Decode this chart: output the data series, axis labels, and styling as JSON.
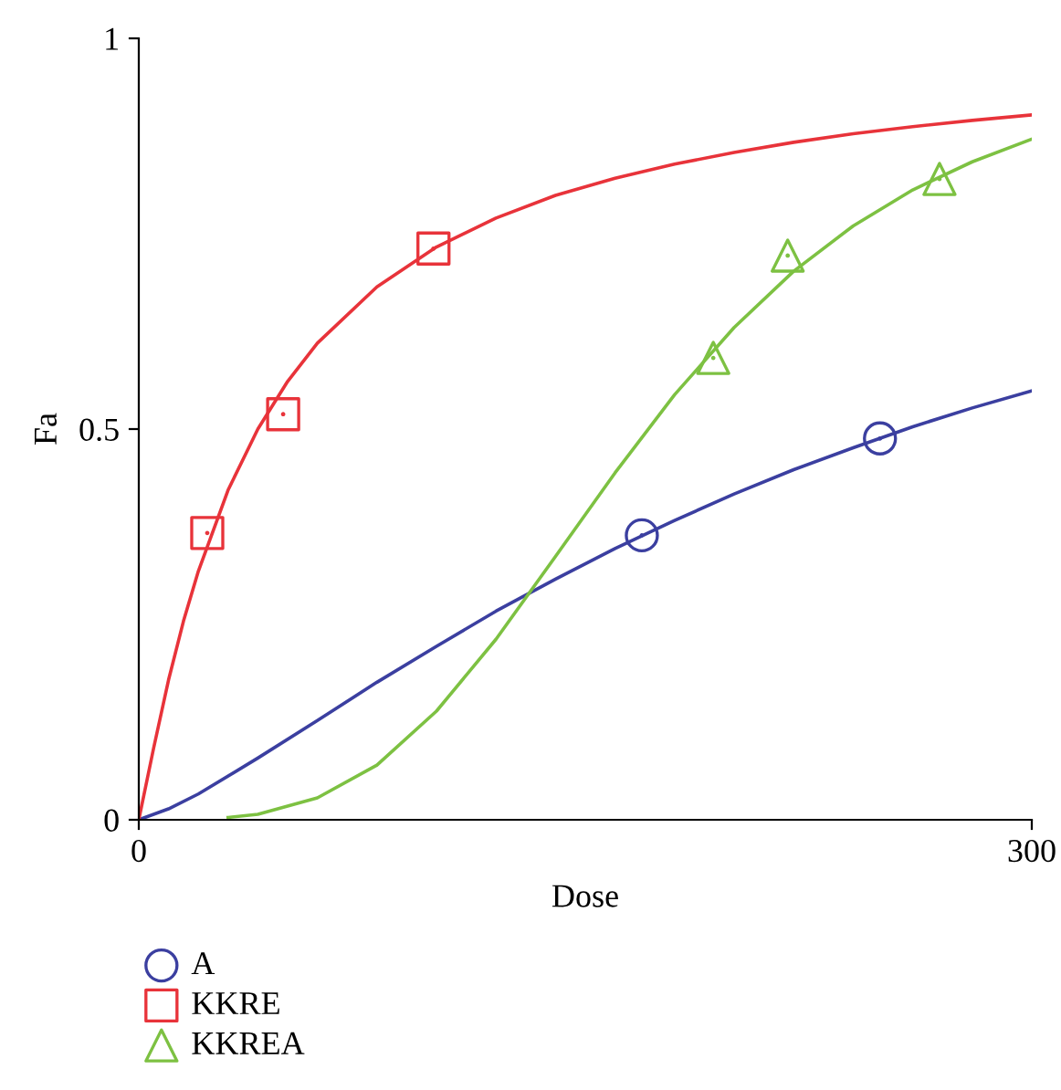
{
  "chart_data": {
    "type": "line",
    "xlabel": "Dose",
    "ylabel": "Fa",
    "xlim": [
      0,
      300
    ],
    "ylim": [
      0,
      1
    ],
    "xticks": [
      0,
      300
    ],
    "yticks": [
      0,
      0.5,
      1
    ],
    "grid": false,
    "legend": "bottom left",
    "series": [
      {
        "color": "#3b3fa0",
        "x": [
          0,
          10,
          20,
          40,
          60,
          80,
          100,
          120,
          140,
          160,
          180,
          200,
          220,
          240,
          260,
          280,
          300
        ],
        "values": [
          0,
          0.014,
          0.033,
          0.079,
          0.127,
          0.176,
          0.222,
          0.267,
          0.308,
          0.347,
          0.383,
          0.417,
          0.448,
          0.476,
          0.503,
          0.527,
          0.549
        ]
      },
      {
        "color": "#e8333a",
        "x": [
          0,
          5,
          10,
          15,
          20,
          30,
          40,
          50,
          60,
          80,
          100,
          120,
          140,
          160,
          180,
          200,
          220,
          240,
          260,
          280,
          300
        ],
        "values": [
          0,
          0.092,
          0.179,
          0.254,
          0.318,
          0.422,
          0.5,
          0.561,
          0.61,
          0.682,
          0.733,
          0.77,
          0.799,
          0.821,
          0.839,
          0.854,
          0.867,
          0.878,
          0.887,
          0.895,
          0.902
        ]
      },
      {
        "color": "#7dc142",
        "x": [
          30,
          40,
          60,
          80,
          100,
          120,
          140,
          160,
          180,
          200,
          220,
          240,
          260,
          280,
          300
        ],
        "values": [
          0.003,
          0.007,
          0.028,
          0.07,
          0.139,
          0.231,
          0.337,
          0.444,
          0.544,
          0.63,
          0.702,
          0.76,
          0.806,
          0.842,
          0.871
        ]
      },
      {
        "type": "scatter",
        "name": "A",
        "marker": "circle",
        "color": "#3b3fa0",
        "x": [
          169,
          249
        ],
        "values": [
          0.364,
          0.488
        ]
      },
      {
        "type": "scatter",
        "name": "KKRE",
        "marker": "square",
        "color": "#e8333a",
        "x": [
          23,
          48.5,
          99
        ],
        "values": [
          0.367,
          0.519,
          0.731
        ]
      },
      {
        "type": "scatter",
        "name": "KKREA",
        "marker": "triangle",
        "color": "#7dc142",
        "x": [
          193,
          218,
          269
        ],
        "values": [
          0.591,
          0.722,
          0.82
        ]
      }
    ]
  }
}
